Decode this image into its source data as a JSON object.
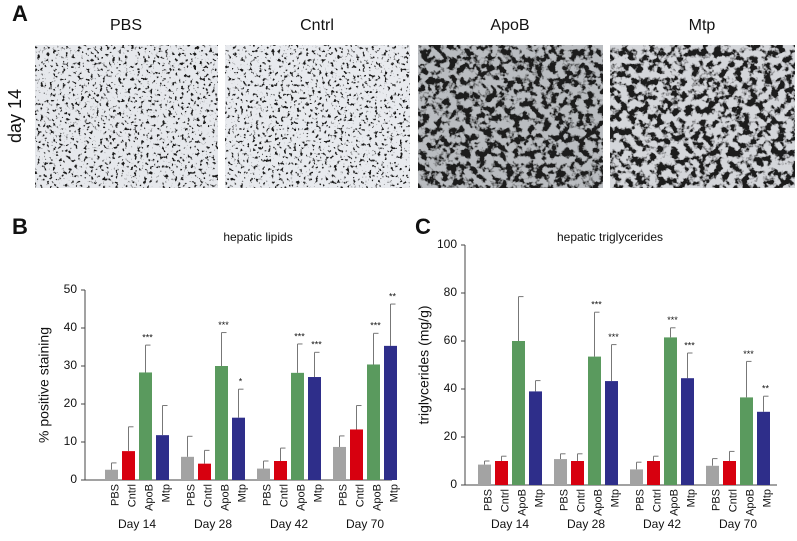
{
  "panel_a": {
    "panel_label": "A",
    "row_label": "day 14",
    "images": [
      "PBS",
      "Cntrl",
      "ApoB",
      "Mtp"
    ]
  },
  "chart_data": [
    {
      "type": "bar",
      "panel_label": "B",
      "title": "hepatic lipids",
      "ylabel": "% positive staining",
      "categories": [
        "Day 14",
        "Day 28",
        "Day 42",
        "Day 70"
      ],
      "series": [
        {
          "name": "PBS",
          "color": "#a3a3a3",
          "values": [
            2.7,
            6.1,
            3,
            8.7
          ],
          "errors": [
            1.8,
            5.4,
            2,
            2.9
          ],
          "annotations": [
            null,
            null,
            null,
            null
          ]
        },
        {
          "name": "Cntrl",
          "color": "#d7000f",
          "values": [
            7.6,
            4.3,
            5,
            13.3
          ],
          "errors": [
            6.4,
            3.5,
            3.4,
            6.3
          ],
          "annotations": [
            null,
            null,
            null,
            null
          ]
        },
        {
          "name": "ApoB",
          "color": "#5a9a5e",
          "values": [
            28.3,
            30,
            28.2,
            30.4
          ],
          "errors": [
            7.2,
            8.8,
            7.6,
            8.2
          ],
          "annotations": [
            "***",
            "***",
            "***",
            "***"
          ]
        },
        {
          "name": "Mtp",
          "color": "#2e2e8a",
          "values": [
            11.8,
            16.4,
            27.1,
            35.3
          ],
          "errors": [
            7.8,
            7.5,
            6.5,
            11
          ],
          "annotations": [
            null,
            "*",
            "***",
            "**"
          ]
        }
      ],
      "ylim": [
        0,
        50
      ],
      "yticks": [
        0,
        10,
        20,
        30,
        40,
        50
      ]
    },
    {
      "type": "bar",
      "panel_label": "C",
      "title": "hepatic triglycerides",
      "ylabel": "triglycerides (mg/g)",
      "categories": [
        "Day 14",
        "Day 28",
        "Day 42",
        "Day 70"
      ],
      "series": [
        {
          "name": "PBS",
          "color": "#a3a3a3",
          "values": [
            8.5,
            10.8,
            6.5,
            8
          ],
          "errors": [
            1.5,
            2.2,
            3,
            3
          ],
          "annotations": [
            null,
            null,
            null,
            null
          ]
        },
        {
          "name": "Cntrl",
          "color": "#d7000f",
          "values": [
            10,
            10,
            10,
            10
          ],
          "errors": [
            2,
            3,
            2,
            4
          ],
          "annotations": [
            null,
            null,
            null,
            null
          ]
        },
        {
          "name": "ApoB",
          "color": "#5a9a5e",
          "values": [
            60,
            53.5,
            61.5,
            36.5
          ],
          "errors": [
            18.5,
            18.5,
            4,
            15
          ],
          "annotations": [
            null,
            "***",
            "***",
            "***"
          ]
        },
        {
          "name": "Mtp",
          "color": "#2e2e8a",
          "values": [
            39,
            43.3,
            44.5,
            30.5
          ],
          "errors": [
            4.5,
            15.2,
            10.5,
            6.5
          ],
          "annotations": [
            null,
            "***",
            "***",
            "**"
          ]
        }
      ],
      "ylim": [
        0,
        100
      ],
      "yticks": [
        0,
        20,
        40,
        60,
        80,
        100
      ]
    }
  ]
}
